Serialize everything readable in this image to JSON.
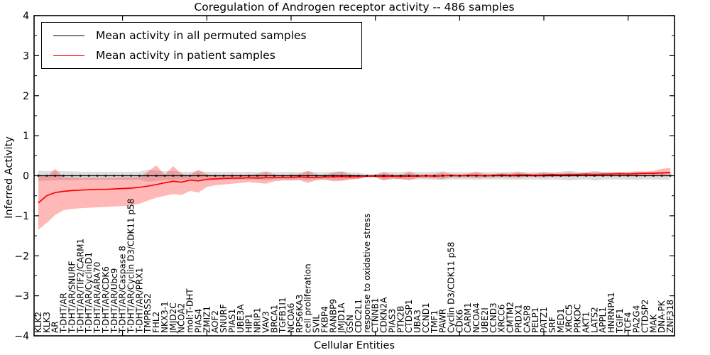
{
  "figure": {
    "title": "Coregulation of Androgen receptor activity -- 486 samples",
    "ylabel": "Inferred Activity",
    "xlabel": "Cellular Entities"
  },
  "legend": {
    "items": [
      {
        "label": "Mean activity in all permuted samples",
        "color": "#000000"
      },
      {
        "label": "Mean activity in patient samples",
        "color": "#ff0000"
      }
    ],
    "position": "upper left"
  },
  "colors": {
    "permuted_line": "#000000",
    "patient_line": "#ff0000",
    "permuted_band": "rgba(0,0,0,0.13)",
    "patient_band": "rgba(255,0,0,0.28)",
    "frame": "#000000",
    "background": "#ffffff"
  },
  "chart_data": {
    "type": "line",
    "title": "Coregulation of Androgen receptor activity -- 486 samples",
    "xlabel": "Cellular Entities",
    "ylabel": "Inferred Activity",
    "ylim": [
      -4,
      4
    ],
    "ytick_values": [
      4,
      3,
      2,
      1,
      0,
      -1,
      -2,
      -3,
      -4
    ],
    "ytick_labels": [
      "4",
      "3",
      "2",
      "1",
      "0",
      "−1",
      "−2",
      "−3",
      "−4"
    ],
    "y_minor_tick_values": [
      3.5,
      2.5,
      1.5,
      0.5,
      -0.5,
      -1.5,
      -2.5,
      -3.5
    ],
    "x_major_tick_indices": [
      10,
      20,
      30,
      40,
      50,
      60,
      70
    ],
    "grid": false,
    "legend_position": "upper left",
    "categories": [
      "KLK2",
      "KLK3",
      "AR",
      "T-DHT/AR",
      "T-DHT/AR/SNURF",
      "T-DHT/AR/TIF2/CARM1",
      "T-DHT/AR/CyclinD1",
      "T-DHT/AR/ARA70",
      "T-DHT/AR/CDK6",
      "T-DHT/AR/Ubc9",
      "T-DHT/AR/Caspase 8",
      "T-DHT/AR/Cyclin D3/CDK11 p58",
      "T-DHT/AR/PRX1",
      "TMPRSS2",
      "FHL2",
      "NKX3-1",
      "JMJD2C",
      "NCOA2",
      "mol:T-DHT",
      "PIAS4",
      "ZMIZ1",
      "AOF2",
      "SNURF",
      "PIAS1",
      "UBE3A",
      "HIP1",
      "NRIP1",
      "VAV3",
      "BRCA1",
      "TGFB1I1",
      "NCOA6",
      "RPS6KA3",
      "cell proliferation",
      "SVIL",
      "FKBP4",
      "RANBP9",
      "JMJD1A",
      "GSN",
      "CDC2L1",
      "response to oxidative stress",
      "CTNNB1",
      "CDKN2A",
      "PIAS3",
      "PTK2B",
      "CTDSP1",
      "UBA3",
      "CCND1",
      "TMF1",
      "PAWR",
      "Cyclin D3/CDK11 p58",
      "CDK6",
      "CARM1",
      "NCOA4",
      "UBE2I",
      "CCND3",
      "XRCC6",
      "CMTM2",
      "PRDX1",
      "CASP8",
      "PELP1",
      "PATZ1",
      "SRF",
      "MED1",
      "XRCC5",
      "PRKDC",
      "AKT1",
      "LATS2",
      "APPL1",
      "HNRNPA1",
      "TGIF1",
      "TCF4",
      "PA2G4",
      "CTDSP2",
      "MAK",
      "DNA-PK",
      "ZNF318"
    ],
    "series": [
      {
        "name": "Mean activity in all permuted samples",
        "color": "#000000",
        "band_color": "rgba(0,0,0,0.13)",
        "markers": true,
        "values": [
          0,
          0,
          0,
          0,
          0,
          0,
          0,
          0,
          0,
          0,
          0,
          0,
          0,
          0,
          0,
          0,
          0,
          0,
          0,
          0,
          0,
          0,
          0,
          0,
          0,
          0,
          0,
          0,
          0,
          0,
          0,
          0,
          0,
          0,
          0,
          0,
          0,
          0,
          0,
          0,
          0,
          0,
          0,
          0,
          0,
          0,
          0,
          0,
          0,
          0,
          0,
          0,
          0,
          0,
          0,
          0,
          0,
          0,
          0,
          0,
          0,
          0,
          0,
          0,
          0,
          0,
          0,
          0,
          0,
          0,
          0,
          0,
          0,
          0,
          0,
          0
        ],
        "band_upper": [
          0.13,
          0.12,
          0.12,
          0.11,
          0.11,
          0.1,
          0.1,
          0.1,
          0.1,
          0.1,
          0.1,
          0.1,
          0.1,
          0.15,
          0.13,
          0.11,
          0.12,
          0.1,
          0.1,
          0.11,
          0.1,
          0.1,
          0.09,
          0.1,
          0.09,
          0.1,
          0.09,
          0.11,
          0.09,
          0.09,
          0.1,
          0.09,
          0.11,
          0.09,
          0.09,
          0.1,
          0.11,
          0.09,
          0.08,
          0.03,
          0.04,
          0.1,
          0.09,
          0.09,
          0.11,
          0.09,
          0.09,
          0.1,
          0.11,
          0.09,
          0.09,
          0.09,
          0.1,
          0.09,
          0.09,
          0.09,
          0.1,
          0.1,
          0.09,
          0.09,
          0.1,
          0.09,
          0.1,
          0.12,
          0.1,
          0.09,
          0.12,
          0.1,
          0.09,
          0.09,
          0.1,
          0.1,
          0.09,
          0.09,
          0.1,
          0.1
        ],
        "band_lower": [
          -0.13,
          -0.12,
          -0.12,
          -0.11,
          -0.11,
          -0.1,
          -0.1,
          -0.1,
          -0.1,
          -0.1,
          -0.1,
          -0.1,
          -0.1,
          -0.15,
          -0.13,
          -0.11,
          -0.12,
          -0.1,
          -0.1,
          -0.11,
          -0.1,
          -0.1,
          -0.09,
          -0.1,
          -0.09,
          -0.1,
          -0.09,
          -0.11,
          -0.09,
          -0.09,
          -0.1,
          -0.09,
          -0.11,
          -0.09,
          -0.09,
          -0.1,
          -0.11,
          -0.09,
          -0.08,
          -0.03,
          -0.04,
          -0.1,
          -0.09,
          -0.09,
          -0.11,
          -0.09,
          -0.09,
          -0.1,
          -0.11,
          -0.09,
          -0.09,
          -0.09,
          -0.1,
          -0.09,
          -0.09,
          -0.09,
          -0.1,
          -0.1,
          -0.09,
          -0.09,
          -0.1,
          -0.09,
          -0.1,
          -0.12,
          -0.1,
          -0.09,
          -0.12,
          -0.1,
          -0.09,
          -0.09,
          -0.1,
          -0.1,
          -0.09,
          -0.09,
          -0.1,
          -0.1
        ]
      },
      {
        "name": "Mean activity in patient samples",
        "color": "#ff0000",
        "band_color": "rgba(255,0,0,0.28)",
        "markers": false,
        "values": [
          -0.68,
          -0.5,
          -0.42,
          -0.39,
          -0.37,
          -0.36,
          -0.35,
          -0.34,
          -0.34,
          -0.33,
          -0.32,
          -0.31,
          -0.29,
          -0.26,
          -0.22,
          -0.18,
          -0.14,
          -0.16,
          -0.11,
          -0.13,
          -0.09,
          -0.08,
          -0.07,
          -0.06,
          -0.06,
          -0.05,
          -0.06,
          -0.05,
          -0.05,
          -0.04,
          -0.04,
          -0.03,
          -0.04,
          -0.04,
          -0.03,
          -0.03,
          -0.02,
          -0.03,
          -0.02,
          -0.01,
          -0.01,
          -0.02,
          -0.01,
          -0.02,
          -0.01,
          -0.01,
          0.0,
          -0.01,
          0.0,
          0.01,
          0.0,
          0.01,
          0.01,
          0.0,
          0.01,
          0.02,
          0.01,
          0.02,
          0.02,
          0.01,
          0.02,
          0.03,
          0.02,
          0.03,
          0.03,
          0.04,
          0.03,
          0.04,
          0.04,
          0.05,
          0.04,
          0.05,
          0.06,
          0.06,
          0.07,
          0.08
        ],
        "band_upper": [
          0.05,
          -0.03,
          0.17,
          -0.04,
          -0.04,
          -0.05,
          -0.05,
          -0.05,
          -0.05,
          -0.05,
          -0.04,
          -0.04,
          -0.03,
          0.1,
          0.26,
          0.02,
          0.24,
          0.05,
          0.02,
          0.15,
          0.03,
          0.02,
          0.02,
          0.03,
          0.02,
          0.03,
          0.04,
          0.1,
          0.03,
          0.02,
          0.03,
          0.04,
          0.12,
          0.03,
          0.02,
          0.08,
          0.1,
          0.03,
          0.02,
          0.01,
          0.02,
          0.08,
          0.03,
          0.02,
          0.09,
          0.03,
          0.03,
          0.04,
          0.08,
          0.04,
          0.03,
          0.05,
          0.09,
          0.04,
          0.04,
          0.06,
          0.05,
          0.09,
          0.05,
          0.05,
          0.08,
          0.06,
          0.06,
          0.08,
          0.06,
          0.07,
          0.09,
          0.07,
          0.08,
          0.09,
          0.08,
          0.11,
          0.1,
          0.12,
          0.17,
          0.2
        ],
        "band_lower": [
          -1.35,
          -1.18,
          -0.98,
          -0.86,
          -0.83,
          -0.81,
          -0.8,
          -0.79,
          -0.78,
          -0.77,
          -0.76,
          -0.74,
          -0.7,
          -0.62,
          -0.55,
          -0.5,
          -0.46,
          -0.48,
          -0.38,
          -0.42,
          -0.28,
          -0.24,
          -0.22,
          -0.2,
          -0.18,
          -0.16,
          -0.18,
          -0.2,
          -0.14,
          -0.12,
          -0.12,
          -0.11,
          -0.18,
          -0.11,
          -0.1,
          -0.14,
          -0.13,
          -0.09,
          -0.08,
          -0.04,
          -0.04,
          -0.12,
          -0.07,
          -0.08,
          -0.1,
          -0.06,
          -0.06,
          -0.07,
          -0.08,
          -0.04,
          -0.05,
          -0.04,
          -0.06,
          -0.05,
          -0.04,
          -0.03,
          -0.04,
          -0.05,
          -0.02,
          -0.03,
          -0.04,
          -0.02,
          -0.02,
          -0.02,
          -0.01,
          0.0,
          -0.02,
          0.0,
          0.0,
          0.01,
          0.0,
          0.0,
          0.01,
          0.01,
          0.02,
          0.02
        ]
      }
    ]
  }
}
